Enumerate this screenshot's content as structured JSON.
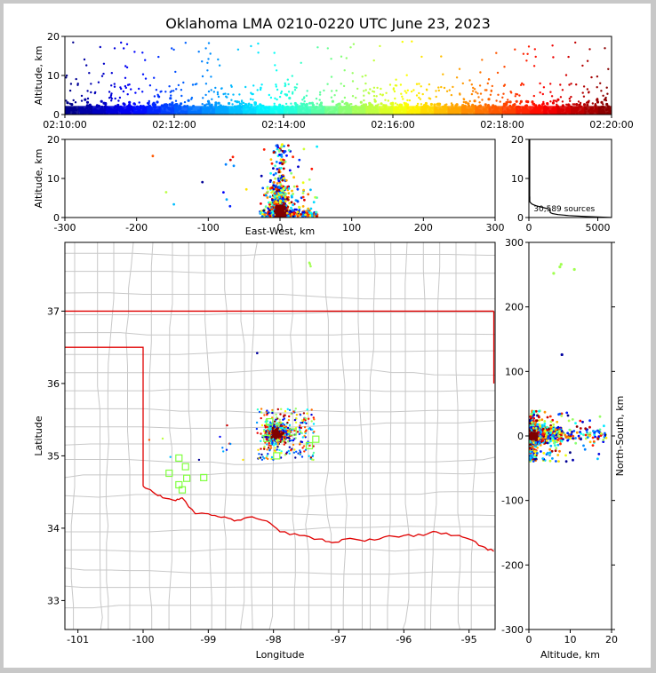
{
  "title": "Oklahoma LMA 0210-0220 UTC June 23, 2023",
  "colors": {
    "map_background": "#ffffff",
    "county_lines": "#c8c8c8",
    "state_border": "#e00000",
    "station_marker": "#80ff40"
  },
  "chart_data": [
    {
      "id": "time-altitude",
      "type": "scatter",
      "xlabel": "",
      "ylabel": "Altitude, km",
      "x_ticks": [
        "02:10:00",
        "02:12:00",
        "02:14:00",
        "02:16:00",
        "02:18:00",
        "02:20:00"
      ],
      "xlim": [
        "02:10:00",
        "02:20:00"
      ],
      "ylim": [
        0,
        20
      ],
      "y_ticks": [
        "0",
        "10",
        "20"
      ],
      "color_by": "time",
      "colormap": "jet"
    },
    {
      "id": "ew-altitude",
      "type": "scatter",
      "xlabel": "East-West, km",
      "ylabel": "Altitude, km",
      "xlim": [
        -300,
        300
      ],
      "x_ticks": [
        "-300",
        "-200",
        "-100",
        "0",
        "100",
        "200",
        "300"
      ],
      "ylim": [
        0,
        20
      ],
      "y_ticks": [
        "0",
        "10",
        "20"
      ]
    },
    {
      "id": "altitude-histogram",
      "type": "line",
      "annotation": "30,589 sources",
      "xlim": [
        0,
        6000
      ],
      "x_ticks": [
        "0",
        "5000"
      ],
      "ylim": [
        0,
        20
      ],
      "y_ticks": [
        "0",
        "10",
        "20"
      ]
    },
    {
      "id": "plan-view",
      "type": "scatter",
      "xlabel": "Longitude",
      "ylabel": "Latitude",
      "xlim": [
        -101.2,
        -94.6
      ],
      "x_ticks": [
        "-101",
        "-100",
        "-99",
        "-98",
        "-97",
        "-96",
        "-95"
      ],
      "ylim": [
        32.6,
        37.95
      ],
      "y_ticks": [
        "33",
        "34",
        "35",
        "36",
        "37"
      ],
      "storm_center": {
        "lon": -97.95,
        "lat": 35.3
      },
      "lma_stations": [
        {
          "lon": -99.45,
          "lat": 34.97
        },
        {
          "lon": -99.35,
          "lat": 34.85
        },
        {
          "lon": -99.33,
          "lat": 34.69
        },
        {
          "lon": -99.45,
          "lat": 34.6
        },
        {
          "lon": -99.4,
          "lat": 34.53
        },
        {
          "lon": -99.6,
          "lat": 34.76
        },
        {
          "lon": -99.07,
          "lat": 34.7
        },
        {
          "lon": -98.06,
          "lat": 35.47
        },
        {
          "lon": -98.1,
          "lat": 35.24
        },
        {
          "lon": -97.95,
          "lat": 35.0
        },
        {
          "lon": -97.45,
          "lat": 35.14
        },
        {
          "lon": -97.35,
          "lat": 35.23
        },
        {
          "lon": -97.7,
          "lat": 35.33
        }
      ]
    },
    {
      "id": "altitude-ns",
      "type": "scatter",
      "xlabel": "Altitude, km",
      "ylabel": "North-South, km",
      "xlim": [
        0,
        20
      ],
      "x_ticks": [
        "0",
        "10",
        "20"
      ],
      "ylim": [
        -300,
        300
      ],
      "y_ticks": [
        "-300",
        "-200",
        "-100",
        "0",
        "100",
        "200",
        "300"
      ]
    }
  ]
}
